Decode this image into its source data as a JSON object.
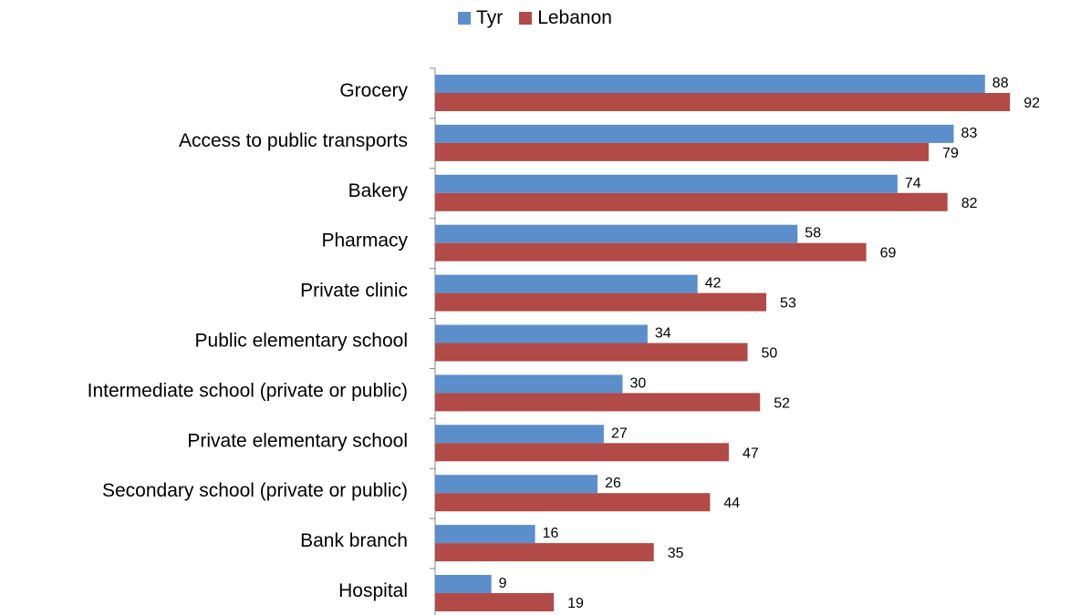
{
  "chart_data": {
    "type": "bar",
    "orientation": "horizontal",
    "categories": [
      "Grocery",
      "Access to public transports",
      "Bakery",
      "Pharmacy",
      "Private clinic",
      "Public elementary school",
      "Intermediate school (private or public)",
      "Private elementary school",
      "Secondary school (private or public)",
      "Bank branch",
      "Hospital"
    ],
    "series": [
      {
        "name": "Tyr",
        "color": "#5b8fcc",
        "values": [
          88,
          83,
          74,
          58,
          42,
          34,
          30,
          27,
          26,
          16,
          9
        ]
      },
      {
        "name": "Lebanon",
        "color": "#b24a48",
        "values": [
          92,
          79,
          82,
          69,
          53,
          50,
          52,
          47,
          44,
          35,
          19
        ]
      }
    ],
    "xlim": [
      0,
      100
    ],
    "legend_position": "top-center",
    "grid": false,
    "data_labels": true
  }
}
